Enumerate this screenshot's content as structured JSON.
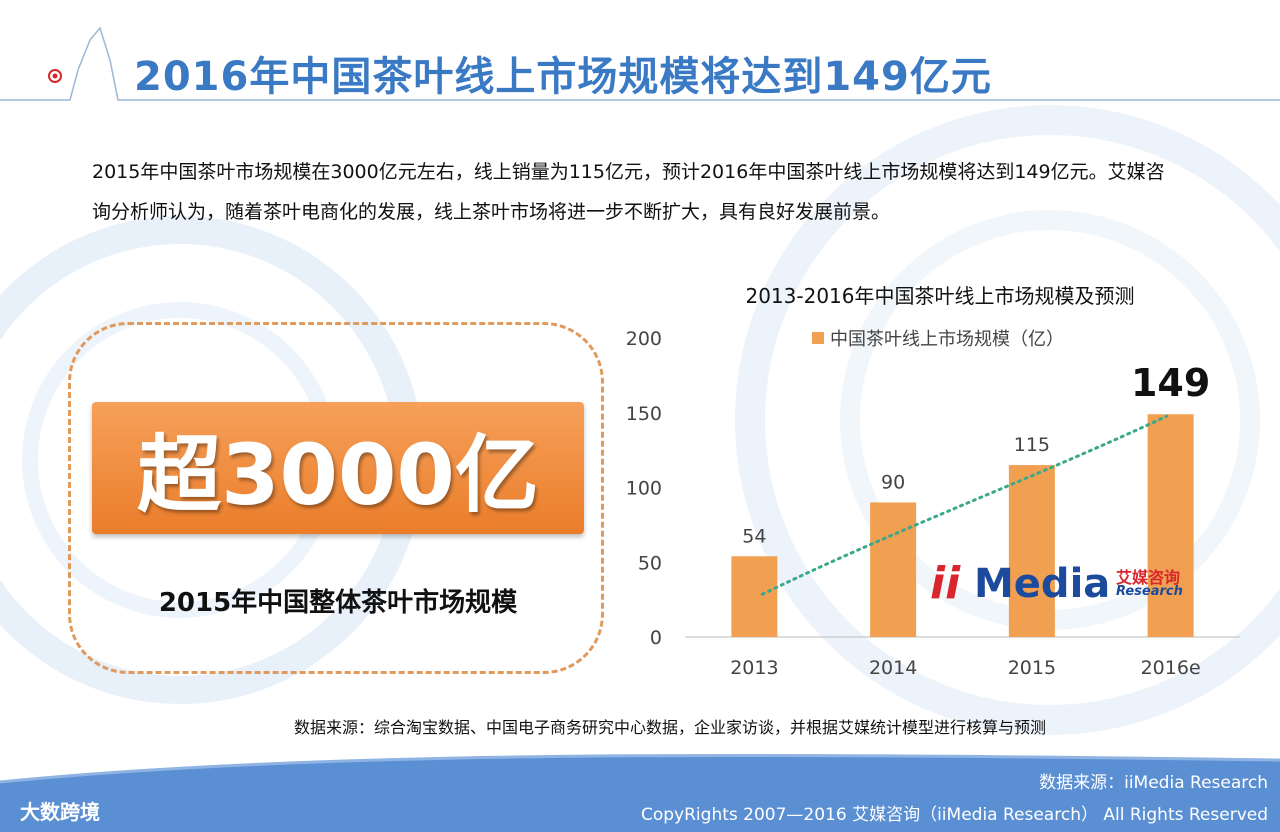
{
  "page": {
    "title": "2016年中国茶叶线上市场规模将达到149亿元",
    "intro": "2015年中国茶叶市场规模在3000亿元左右，线上销量为115亿元，预计2016年中国茶叶线上市场规模将达到149亿元。艾媒咨询分析师认为，随着茶叶电商化的发展，线上茶叶市场将进一步不断扩大，具有良好发展前景。"
  },
  "highlight": {
    "value": "超3000亿",
    "caption": "2015年中国整体茶叶市场规模"
  },
  "logo": {
    "ii": "ii",
    "media": "Media",
    "cn": "艾媒咨询",
    "en": "Research"
  },
  "source": "数据来源：综合淘宝数据、中国电子商务研究中心数据，企业家访谈，并根据艾媒统计模型进行核算与预测",
  "footer": {
    "source": "数据来源：iiMedia Research",
    "copyright": "CopyRights 2007—2016 艾媒咨询（iiMedia Research） All Rights Reserved",
    "brand": "大数跨境"
  },
  "colors": {
    "title": "#3a79c4",
    "bar": "#f0a050",
    "trend": "#3aa88a",
    "footer": "#5b8fd4"
  },
  "chart_data": {
    "type": "bar",
    "title": "2013-2016年中国茶叶线上市场规模及预测",
    "categories": [
      "2013",
      "2014",
      "2015",
      "2016e"
    ],
    "series": [
      {
        "name": "中国茶叶线上市场规模（亿）",
        "values": [
          54,
          90,
          115,
          149
        ]
      }
    ],
    "ylim": [
      0,
      200
    ],
    "yticks": [
      0,
      50,
      100,
      150,
      200
    ],
    "data_labels": [
      "54",
      "90",
      "115",
      "149"
    ],
    "trendline": "dotted",
    "legend": "top",
    "grid": false
  }
}
